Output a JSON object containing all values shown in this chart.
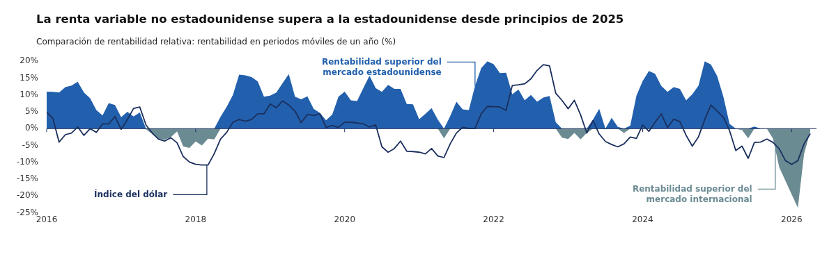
{
  "chart_data": {
    "type": "area",
    "title": "La renta variable no estadounidense supera a la estadounidense desde principios de 2025",
    "subtitle": "Comparación de rentabilidad relativa: rentabilidad en periodos móviles de un año (%)",
    "x": [
      "2016-01",
      "2016-02",
      "2016-03",
      "2016-04",
      "2016-05",
      "2016-06",
      "2016-07",
      "2016-08",
      "2016-09",
      "2016-10",
      "2016-11",
      "2016-12",
      "2017-01",
      "2017-02",
      "2017-03",
      "2017-04",
      "2017-05",
      "2017-06",
      "2017-07",
      "2017-08",
      "2017-09",
      "2017-10",
      "2017-11",
      "2017-12",
      "2018-01",
      "2018-02",
      "2018-03",
      "2018-04",
      "2018-05",
      "2018-06",
      "2018-07",
      "2018-08",
      "2018-09",
      "2018-10",
      "2018-11",
      "2018-12",
      "2019-01",
      "2019-02",
      "2019-03",
      "2019-04",
      "2019-05",
      "2019-06",
      "2019-07",
      "2019-08",
      "2019-09",
      "2019-10",
      "2019-11",
      "2019-12",
      "2020-01",
      "2020-02",
      "2020-03",
      "2020-04",
      "2020-05",
      "2020-06",
      "2020-07",
      "2020-08",
      "2020-09",
      "2020-10",
      "2020-11",
      "2020-12",
      "2021-01",
      "2021-02",
      "2021-03",
      "2021-04",
      "2021-05",
      "2021-06",
      "2021-07",
      "2021-08",
      "2021-09",
      "2021-10",
      "2021-11",
      "2021-12",
      "2022-01",
      "2022-02",
      "2022-03",
      "2022-04",
      "2022-05",
      "2022-06",
      "2022-07",
      "2022-08",
      "2022-09",
      "2022-10",
      "2022-11",
      "2022-12",
      "2023-01",
      "2023-02",
      "2023-03",
      "2023-04",
      "2023-05",
      "2023-06",
      "2023-07",
      "2023-08",
      "2023-09",
      "2023-10",
      "2023-11",
      "2023-12",
      "2024-01",
      "2024-02",
      "2024-03",
      "2024-04",
      "2024-05",
      "2024-06",
      "2024-07",
      "2024-08",
      "2024-09",
      "2024-10",
      "2024-11",
      "2024-12",
      "2025-01",
      "2025-02",
      "2025-03",
      "2025-04",
      "2025-05",
      "2025-06",
      "2025-07",
      "2025-08",
      "2025-09",
      "2025-10",
      "2025-11",
      "2025-12",
      "2026-01",
      "2026-02",
      "2026-03",
      "2026-04"
    ],
    "series": [
      {
        "name": "Rentabilidad superior del mercado estadounidense",
        "color": "#2260ad",
        "values": [
          11,
          10.9,
          10.7,
          12.3,
          12.8,
          13.9,
          10.7,
          9,
          5.5,
          3.9,
          7.6,
          7,
          3.4,
          5,
          3.6,
          4.8,
          0,
          0,
          0,
          0,
          0,
          0,
          0,
          0,
          0,
          0,
          0,
          0,
          3.5,
          6.5,
          10,
          16,
          15.8,
          15.3,
          14,
          9.5,
          9.8,
          10.7,
          13.5,
          16.2,
          9.5,
          8.7,
          9.6,
          5.9,
          4.7,
          2.5,
          4.2,
          9.5,
          11,
          8.4,
          8.2,
          12,
          15.7,
          12,
          10.9,
          13,
          11.8,
          11.8,
          7.3,
          7.2,
          2.8,
          4.4,
          6.1,
          2.7,
          0,
          3.7,
          8,
          5.7,
          5.5,
          12.7,
          18,
          20,
          19.1,
          16.5,
          16.6,
          10.2,
          11.6,
          8.4,
          10,
          8,
          9.2,
          9.7,
          1.9,
          0,
          0,
          0,
          0,
          0,
          2.7,
          5.9,
          0,
          3.2,
          0.5,
          0,
          0.9,
          9.8,
          14.1,
          17.1,
          16.3,
          12.7,
          10.9,
          12.3,
          11.8,
          8.4,
          10.2,
          12.8,
          20,
          19,
          15.6,
          9.5,
          1.4,
          0,
          0,
          0,
          0.6,
          0,
          0,
          0,
          0,
          0,
          0,
          0,
          0,
          0
        ]
      },
      {
        "name": "Rentabilidad superior del mercado internacional",
        "color": "#6b8b93",
        "values": [
          0,
          0,
          0,
          0,
          0,
          0,
          0,
          0,
          0,
          0,
          0,
          0,
          0,
          0,
          0,
          0,
          -0.2,
          -1.6,
          -3,
          -3.3,
          -2.5,
          -0.8,
          -5.3,
          -5.7,
          -3.8,
          -5,
          -3,
          -3.2,
          0,
          0,
          0,
          0,
          0,
          0,
          0,
          0,
          0,
          0,
          0,
          0,
          0,
          0,
          0,
          0,
          0,
          0,
          0,
          0,
          0,
          0,
          0,
          0,
          0,
          0,
          0,
          0,
          0,
          0,
          0,
          0,
          0,
          0,
          0,
          0,
          -2.9,
          0,
          0,
          0,
          0,
          0,
          0,
          0,
          0,
          0,
          0,
          0,
          0,
          0,
          0,
          0,
          0,
          0,
          0,
          -2.7,
          -3.1,
          -1.3,
          -3.2,
          -1.3,
          0,
          0,
          -0.2,
          0,
          0,
          -1.3,
          0,
          0,
          0,
          0,
          0,
          0,
          0,
          0,
          0,
          0,
          0,
          0,
          0,
          0,
          0,
          0,
          0,
          -0.1,
          -0.4,
          -2.9,
          0,
          -0.1,
          0,
          -3,
          -11.5,
          -15.5,
          -19.5,
          -23.5,
          -7.5,
          -0.8
        ]
      },
      {
        "name": "Índice del dólar",
        "type": "line",
        "color": "#1b2f5e",
        "values": [
          4.9,
          3,
          -4,
          -1.8,
          -1.3,
          0.5,
          -2,
          0,
          -1.1,
          1.4,
          1.4,
          3.6,
          -0.2,
          2.7,
          6,
          6.4,
          1.1,
          -1.3,
          -3.1,
          -3.7,
          -2.7,
          -4.2,
          -8.3,
          -9.9,
          -10.6,
          -10.8,
          -10.8,
          -7.4,
          -3.1,
          -1.1,
          1.9,
          2.7,
          2.2,
          2.7,
          4.4,
          4.4,
          7.3,
          6.2,
          8.2,
          7,
          5.2,
          1.8,
          4.2,
          3.9,
          4.4,
          0.4,
          0.9,
          0.4,
          1.9,
          1.9,
          1.7,
          1.4,
          0.5,
          1.1,
          -5.4,
          -7,
          -5.9,
          -3.7,
          -6.7,
          -6.8,
          -7,
          -7.5,
          -5.9,
          -8.1,
          -8.6,
          -4.5,
          -1.3,
          0.4,
          0.1,
          0.1,
          4.4,
          6.6,
          6.5,
          6.4,
          5.4,
          12.8,
          13,
          13.3,
          14.8,
          17.3,
          19,
          18.6,
          10.5,
          8.4,
          5.9,
          8.4,
          4.1,
          -1.3,
          2.4,
          -1.6,
          -3.8,
          -4.7,
          -5.4,
          -4.5,
          -2.5,
          -2.9,
          1.1,
          -0.8,
          1.9,
          4.4,
          0.3,
          2.8,
          2.1,
          -2,
          -5.2,
          -2.4,
          2.7,
          7,
          5.2,
          3.4,
          -0.6,
          -6.5,
          -5.2,
          -8.8,
          -4.1,
          -4,
          -3.1,
          -4.1,
          -6,
          -9.5,
          -10.6,
          -9.5,
          -4.5,
          -1.5
        ]
      }
    ],
    "xlim": [
      "2016-01",
      "2026-05"
    ],
    "xticks": [
      "2016",
      "2018",
      "2020",
      "2022",
      "2024",
      "2026"
    ],
    "ylim": [
      -25,
      20
    ],
    "yticks": [
      {
        "value": -25,
        "label": "-25%"
      },
      {
        "value": -20,
        "label": "-20%"
      },
      {
        "value": -15,
        "label": "-15%"
      },
      {
        "value": -10,
        "label": "-10%"
      },
      {
        "value": -5,
        "label": "-5%"
      },
      {
        "value": 0,
        "label": "0%"
      },
      {
        "value": 5,
        "label": "5%"
      },
      {
        "value": 10,
        "label": "10%"
      },
      {
        "value": 15,
        "label": "15%"
      },
      {
        "value": 20,
        "label": "20%"
      }
    ],
    "grid": false,
    "legend": false
  }
}
